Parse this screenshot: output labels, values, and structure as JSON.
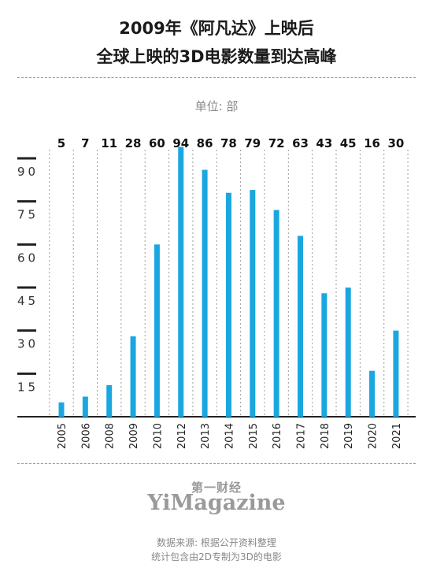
{
  "title_line1": "2009年《阿凡达》上映后",
  "title_line2": "全球上映的3D电影数量到达高峰",
  "unit_label": "单位: 部",
  "source_line1": "数据来源: 根据公开资料整理",
  "source_line2": "统计包含由2D专制为3D的电影",
  "logo_cn": "第一财经",
  "logo_en": "YiMagazine",
  "colors": {
    "bar": "#1aa7e0",
    "axis": "#222222",
    "grid": "#9a9a9a"
  },
  "chart_data": {
    "type": "bar",
    "categories": [
      "2005",
      "2006",
      "2008",
      "2009",
      "2010",
      "2012",
      "2013",
      "2014",
      "2015",
      "2016",
      "2017",
      "2018",
      "2019",
      "2020",
      "2021"
    ],
    "values": [
      5,
      7,
      11,
      28,
      60,
      94,
      86,
      78,
      79,
      72,
      63,
      43,
      45,
      16,
      30
    ],
    "yticks": [
      "15",
      "30",
      "45",
      "60",
      "75",
      "90"
    ],
    "ylim": [
      0,
      94
    ],
    "grid": "vertical dashed"
  }
}
